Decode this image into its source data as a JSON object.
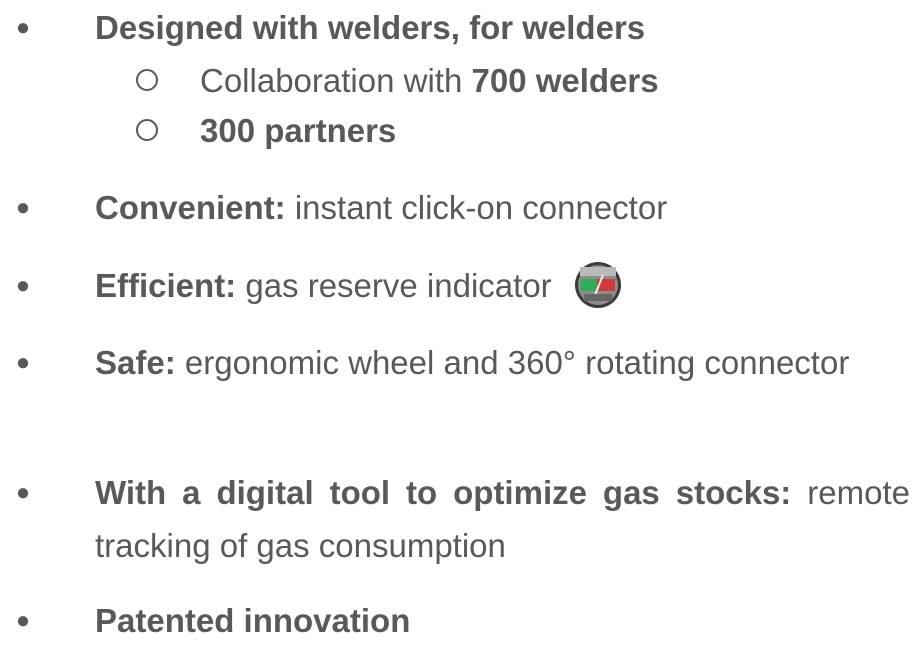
{
  "items": [
    {
      "bold": "Designed with welders, for welders",
      "subitems": [
        {
          "text": "Collaboration with",
          "bold": "700 welders"
        },
        {
          "bold": "300 partners"
        }
      ]
    },
    {
      "bold": "Convenient:",
      "text": "instant click-on connector"
    },
    {
      "bold": "Efficient:",
      "text": "gas reserve indicator"
    },
    {
      "bold": "Safe:",
      "text": "ergonomic wheel and 360° rotating connector"
    },
    {
      "bold": "With a digital tool to optimize gas stocks:",
      "text": "remote tracking of gas consumption"
    },
    {
      "bold": "Patented innovation"
    }
  ]
}
